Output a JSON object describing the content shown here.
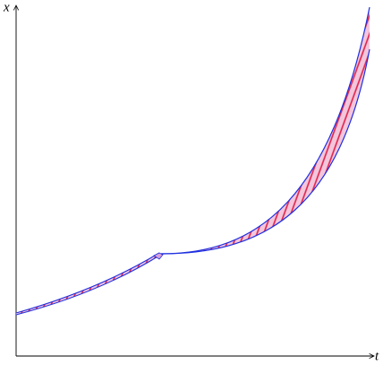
{
  "axes": {
    "vertical_label": "x",
    "horizontal_label": "t"
  }
}
